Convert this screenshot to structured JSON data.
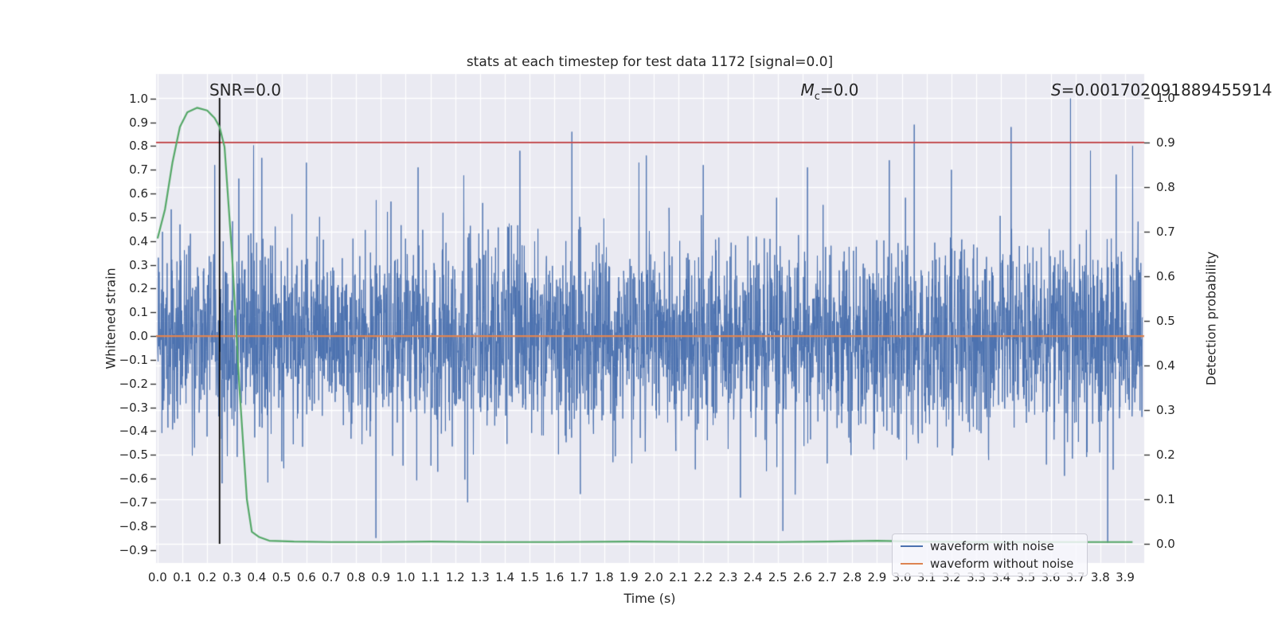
{
  "figure": {
    "title": "stats at each timestep for test data 1172 [signal=0.0]",
    "background": "#ffffff",
    "axes_background": "#eaeaf2",
    "grid_color": "#ffffff",
    "tick_color": "#262626",
    "text_color": "#262626"
  },
  "annotations": {
    "snr": "SNR=0.0",
    "mc_prefix": "M",
    "mc_sub": "c",
    "mc_value": "=0.0",
    "s_prefix": "S",
    "s_value": "=0.001702091889455914"
  },
  "legend": {
    "entries": [
      {
        "label": "waveform with noise",
        "color": "#4c72b0"
      },
      {
        "label": "waveform without noise",
        "color": "#dd8452"
      }
    ]
  },
  "chart_data": {
    "type": "line",
    "title": "stats at each timestep for test data 1172 [signal=0.0]",
    "xlabel": "Time (s)",
    "ylabel_left": "Whitened strain",
    "ylabel_right": "Detection probability",
    "grid": true,
    "xlim": [
      -0.006,
      3.977
    ],
    "ylim_left": [
      -0.955,
      1.103
    ],
    "ylim_right": [
      -0.0429,
      1.0536
    ],
    "x_tick_values": [
      0.0,
      0.1,
      0.2,
      0.3,
      0.4,
      0.5,
      0.6,
      0.7,
      0.8,
      0.9,
      1.0,
      1.1,
      1.2,
      1.3,
      1.4,
      1.5,
      1.6,
      1.7,
      1.8,
      1.9,
      2.0,
      2.1,
      2.2,
      2.3,
      2.4,
      2.5,
      2.6,
      2.7,
      2.8,
      2.9,
      3.0,
      3.1,
      3.2,
      3.3,
      3.4,
      3.5,
      3.6,
      3.7,
      3.8,
      3.9
    ],
    "x_tick_labels": [
      "0.0",
      "0.1",
      "0.2",
      "0.3",
      "0.4",
      "0.5",
      "0.6",
      "0.7",
      "0.8",
      "0.9",
      "1.0",
      "1.1",
      "1.2",
      "1.3",
      "1.4",
      "1.5",
      "1.6",
      "1.7",
      "1.8",
      "1.9",
      "2.0",
      "2.1",
      "2.2",
      "2.3",
      "2.4",
      "2.5",
      "2.6",
      "2.7",
      "2.8",
      "2.9",
      "3.0",
      "3.1",
      "3.2",
      "3.3",
      "3.4",
      "3.5",
      "3.6",
      "3.7",
      "3.8",
      "3.9"
    ],
    "y_left_tick_values": [
      1.0,
      0.9,
      0.8,
      0.7,
      0.6,
      0.5,
      0.4,
      0.3,
      0.2,
      0.1,
      0.0,
      -0.1,
      -0.2,
      -0.3,
      -0.4,
      -0.5,
      -0.6,
      -0.7,
      -0.8,
      -0.9
    ],
    "y_left_tick_labels": [
      "1.0",
      "0.9",
      "0.8",
      "0.7",
      "0.6",
      "0.5",
      "0.4",
      "0.3",
      "0.2",
      "0.1",
      "0.0",
      "−0.1",
      "−0.2",
      "−0.3",
      "−0.4",
      "−0.5",
      "−0.6",
      "−0.7",
      "−0.8",
      "−0.9"
    ],
    "y_right_tick_values": [
      1.0,
      0.9,
      0.8,
      0.7,
      0.6,
      0.5,
      0.4,
      0.3,
      0.2,
      0.1,
      0.0
    ],
    "y_right_tick_labels": [
      "1.0",
      "0.9",
      "0.8",
      "0.7",
      "0.6",
      "0.5",
      "0.4",
      "0.3",
      "0.2",
      "0.1",
      "0.0"
    ],
    "series": [
      {
        "name": "waveform with noise",
        "kind": "noise",
        "axis": "left",
        "color": "#4c72b0",
        "linewidth": 1.0,
        "seed": 1172,
        "n": 3600,
        "sigma": 0.2,
        "x_start": 0.0,
        "x_end": 3.97,
        "spikes": [
          [
            0.23,
            0.72
          ],
          [
            0.26,
            -0.62
          ],
          [
            0.42,
            0.75
          ],
          [
            0.6,
            0.73
          ],
          [
            0.88,
            -0.85
          ],
          [
            1.05,
            0.71
          ],
          [
            1.25,
            -0.7
          ],
          [
            1.46,
            0.78
          ],
          [
            1.67,
            0.86
          ],
          [
            1.94,
            0.73
          ],
          [
            1.97,
            0.76
          ],
          [
            2.2,
            0.72
          ],
          [
            2.35,
            -0.68
          ],
          [
            2.52,
            -0.82
          ],
          [
            2.62,
            0.71
          ],
          [
            2.95,
            0.74
          ],
          [
            3.05,
            0.89
          ],
          [
            3.2,
            0.7
          ],
          [
            3.44,
            0.88
          ],
          [
            3.68,
            1.0
          ],
          [
            3.76,
            0.78
          ],
          [
            3.83,
            -0.87
          ],
          [
            3.93,
            0.8
          ]
        ]
      },
      {
        "name": "waveform without noise",
        "kind": "hline",
        "axis": "left",
        "color": "#dd8452",
        "linewidth": 2.2,
        "value": 0.0
      },
      {
        "name": "detection threshold",
        "kind": "hline",
        "axis": "right",
        "color": "#c44e52",
        "linewidth": 1.8,
        "value": 0.9
      },
      {
        "name": "event time marker",
        "kind": "vline",
        "axis": "right",
        "color": "#000000",
        "linewidth": 1.8,
        "x": 0.25,
        "y_from": 0.0,
        "y_to": 1.0
      },
      {
        "name": "detection probability",
        "kind": "line",
        "axis": "right",
        "color": "#55a868",
        "linewidth": 2.2,
        "points": [
          [
            0.0,
            0.685
          ],
          [
            0.03,
            0.75
          ],
          [
            0.06,
            0.855
          ],
          [
            0.09,
            0.935
          ],
          [
            0.12,
            0.968
          ],
          [
            0.16,
            0.978
          ],
          [
            0.2,
            0.972
          ],
          [
            0.23,
            0.955
          ],
          [
            0.25,
            0.935
          ],
          [
            0.27,
            0.89
          ],
          [
            0.3,
            0.65
          ],
          [
            0.33,
            0.35
          ],
          [
            0.36,
            0.1
          ],
          [
            0.38,
            0.027
          ],
          [
            0.41,
            0.015
          ],
          [
            0.45,
            0.007
          ],
          [
            0.55,
            0.005
          ],
          [
            0.7,
            0.004
          ],
          [
            0.9,
            0.004
          ],
          [
            1.1,
            0.005
          ],
          [
            1.3,
            0.004
          ],
          [
            1.6,
            0.004
          ],
          [
            1.9,
            0.005
          ],
          [
            2.2,
            0.004
          ],
          [
            2.5,
            0.004
          ],
          [
            2.7,
            0.005
          ],
          [
            2.9,
            0.007
          ],
          [
            3.05,
            0.005
          ],
          [
            3.3,
            0.004
          ],
          [
            3.6,
            0.004
          ],
          [
            3.93,
            0.004
          ]
        ]
      }
    ]
  }
}
